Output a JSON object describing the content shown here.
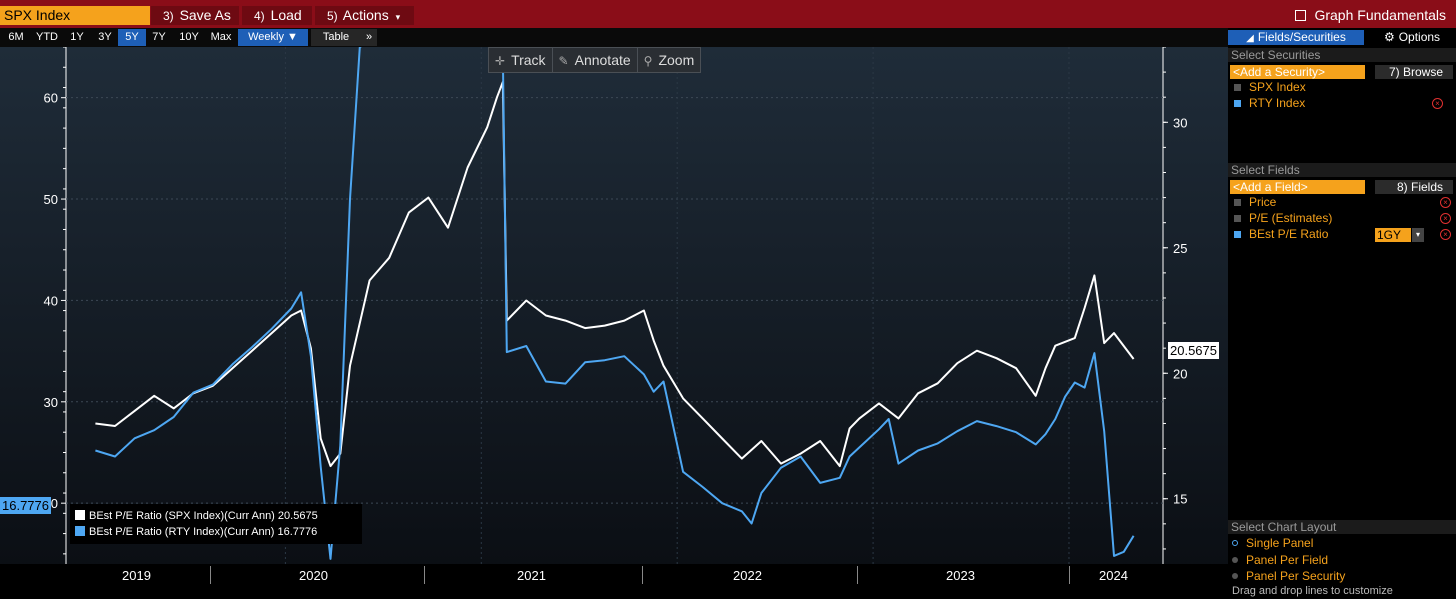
{
  "topbar": {
    "ticker": "SPX Index",
    "save_as": {
      "num": "3)",
      "label": "Save As"
    },
    "load": {
      "num": "4)",
      "label": "Load"
    },
    "actions": {
      "num": "5)",
      "label": "Actions",
      "caret": "▾"
    },
    "graph_fundamentals": "Graph Fundamentals"
  },
  "range_tabs": [
    "6M",
    "YTD",
    "1Y",
    "3Y",
    "5Y",
    "7Y",
    "10Y",
    "Max"
  ],
  "active_range": "5Y",
  "frequency": "Weekly ▼",
  "table_btn": "Table",
  "more_btn": "»",
  "chart_tools": {
    "track": "Track",
    "annotate": "Annotate",
    "zoom": "Zoom"
  },
  "panel": {
    "tab_fields_securities": "Fields/Securities",
    "tab_options": "Options",
    "select_securities": "Select Securities",
    "add_security_placeholder": "<Add a Security>",
    "browse_btn": "7) Browse",
    "securities": [
      {
        "name": "SPX Index",
        "checked": true
      },
      {
        "name": "RTY Index",
        "checked": true
      }
    ],
    "select_fields": "Select Fields",
    "add_field_placeholder": "<Add a Field>",
    "fields_btn": "8) Fields",
    "fields": [
      {
        "name": "Price"
      },
      {
        "name": "P/E (Estimates)"
      },
      {
        "name": "BEst P/E Ratio",
        "period": "1GY"
      }
    ],
    "select_layout": "Select Chart Layout",
    "layouts": [
      "Single Panel",
      "Panel Per Field",
      "Panel Per Security"
    ],
    "hint": "Drag and drop lines to customize"
  },
  "chart_data": {
    "type": "line",
    "x_labels": [
      "2019",
      "2020",
      "2021",
      "2022",
      "2023",
      "2024"
    ],
    "y_left": {
      "ticks": [
        20,
        30,
        40,
        50,
        60
      ],
      "range": [
        14,
        65
      ]
    },
    "y_right": {
      "ticks": [
        15,
        20,
        25,
        30
      ],
      "range": [
        12.4,
        33
      ]
    },
    "legend_position": "bottom-left",
    "series": [
      {
        "name": "BEst P/E Ratio (SPX Index)(Curr Ann)",
        "last_value": "20.5675",
        "color": "#ffffff",
        "axis": "right",
        "points": [
          [
            2019.0,
            18.0
          ],
          [
            2019.1,
            17.9
          ],
          [
            2019.2,
            18.5
          ],
          [
            2019.3,
            19.1
          ],
          [
            2019.4,
            18.6
          ],
          [
            2019.5,
            19.2
          ],
          [
            2019.6,
            19.5
          ],
          [
            2019.7,
            20.2
          ],
          [
            2019.8,
            20.9
          ],
          [
            2019.9,
            21.6
          ],
          [
            2020.0,
            22.3
          ],
          [
            2020.05,
            22.5
          ],
          [
            2020.1,
            21.0
          ],
          [
            2020.15,
            17.4
          ],
          [
            2020.2,
            16.3
          ],
          [
            2020.25,
            16.8
          ],
          [
            2020.3,
            20.3
          ],
          [
            2020.4,
            23.7
          ],
          [
            2020.5,
            24.6
          ],
          [
            2020.6,
            26.4
          ],
          [
            2020.7,
            27.0
          ],
          [
            2020.8,
            25.8
          ],
          [
            2020.9,
            28.2
          ],
          [
            2021.0,
            29.8
          ],
          [
            2021.05,
            31.0
          ],
          [
            2021.08,
            31.6
          ],
          [
            2021.1,
            22.1
          ],
          [
            2021.2,
            22.9
          ],
          [
            2021.3,
            22.3
          ],
          [
            2021.4,
            22.1
          ],
          [
            2021.5,
            21.8
          ],
          [
            2021.6,
            21.9
          ],
          [
            2021.7,
            22.1
          ],
          [
            2021.8,
            22.5
          ],
          [
            2021.85,
            21.3
          ],
          [
            2021.9,
            20.3
          ],
          [
            2022.0,
            19.0
          ],
          [
            2022.1,
            18.2
          ],
          [
            2022.2,
            17.4
          ],
          [
            2022.3,
            16.6
          ],
          [
            2022.4,
            17.3
          ],
          [
            2022.5,
            16.4
          ],
          [
            2022.6,
            16.8
          ],
          [
            2022.7,
            17.3
          ],
          [
            2022.8,
            16.3
          ],
          [
            2022.85,
            17.8
          ],
          [
            2022.9,
            18.2
          ],
          [
            2023.0,
            18.8
          ],
          [
            2023.1,
            18.2
          ],
          [
            2023.2,
            19.2
          ],
          [
            2023.3,
            19.6
          ],
          [
            2023.4,
            20.4
          ],
          [
            2023.5,
            20.9
          ],
          [
            2023.6,
            20.6
          ],
          [
            2023.7,
            20.2
          ],
          [
            2023.8,
            19.1
          ],
          [
            2023.85,
            20.2
          ],
          [
            2023.9,
            21.1
          ],
          [
            2024.0,
            21.4
          ],
          [
            2024.05,
            22.6
          ],
          [
            2024.1,
            23.9
          ],
          [
            2024.15,
            21.2
          ],
          [
            2024.2,
            21.6
          ],
          [
            2024.3,
            20.57
          ]
        ]
      },
      {
        "name": "BEst P/E Ratio (RTY Index)(Curr Ann)",
        "last_value": "16.7776",
        "color": "#4ea7f2",
        "axis": "left",
        "points": [
          [
            2019.0,
            25.2
          ],
          [
            2019.1,
            24.6
          ],
          [
            2019.2,
            26.4
          ],
          [
            2019.3,
            27.2
          ],
          [
            2019.4,
            28.5
          ],
          [
            2019.5,
            30.9
          ],
          [
            2019.6,
            31.7
          ],
          [
            2019.7,
            33.7
          ],
          [
            2019.8,
            35.4
          ],
          [
            2019.9,
            37.2
          ],
          [
            2020.0,
            39.2
          ],
          [
            2020.05,
            40.8
          ],
          [
            2020.1,
            34.5
          ],
          [
            2020.15,
            23.6
          ],
          [
            2020.2,
            14.5
          ],
          [
            2020.25,
            25.7
          ],
          [
            2020.3,
            50.0
          ],
          [
            2020.35,
            65.0
          ],
          [
            2020.4,
            66.0
          ],
          [
            2020.5,
            66.0
          ],
          [
            2020.6,
            66.0
          ],
          [
            2020.7,
            66.0
          ],
          [
            2020.8,
            66.0
          ],
          [
            2020.9,
            66.0
          ],
          [
            2021.0,
            66.0
          ],
          [
            2021.05,
            66.0
          ],
          [
            2021.08,
            64.5
          ],
          [
            2021.1,
            34.9
          ],
          [
            2021.2,
            35.5
          ],
          [
            2021.3,
            32.0
          ],
          [
            2021.4,
            31.8
          ],
          [
            2021.5,
            33.9
          ],
          [
            2021.6,
            34.1
          ],
          [
            2021.7,
            34.5
          ],
          [
            2021.8,
            32.7
          ],
          [
            2021.85,
            31.0
          ],
          [
            2021.9,
            32.0
          ],
          [
            2022.0,
            23.1
          ],
          [
            2022.1,
            21.6
          ],
          [
            2022.2,
            20.0
          ],
          [
            2022.3,
            19.2
          ],
          [
            2022.35,
            18.0
          ],
          [
            2022.4,
            21.0
          ],
          [
            2022.5,
            23.5
          ],
          [
            2022.6,
            24.6
          ],
          [
            2022.7,
            22.0
          ],
          [
            2022.8,
            22.5
          ],
          [
            2022.85,
            24.6
          ],
          [
            2022.9,
            25.5
          ],
          [
            2023.0,
            27.3
          ],
          [
            2023.05,
            28.3
          ],
          [
            2023.1,
            23.9
          ],
          [
            2023.2,
            25.2
          ],
          [
            2023.3,
            25.9
          ],
          [
            2023.4,
            27.1
          ],
          [
            2023.5,
            28.1
          ],
          [
            2023.6,
            27.6
          ],
          [
            2023.7,
            27.0
          ],
          [
            2023.8,
            25.8
          ],
          [
            2023.85,
            26.8
          ],
          [
            2023.9,
            28.3
          ],
          [
            2023.95,
            30.5
          ],
          [
            2024.0,
            31.9
          ],
          [
            2024.05,
            31.4
          ],
          [
            2024.1,
            34.8
          ],
          [
            2024.15,
            27.1
          ],
          [
            2024.2,
            14.8
          ],
          [
            2024.25,
            15.2
          ],
          [
            2024.3,
            16.78
          ]
        ]
      }
    ]
  }
}
